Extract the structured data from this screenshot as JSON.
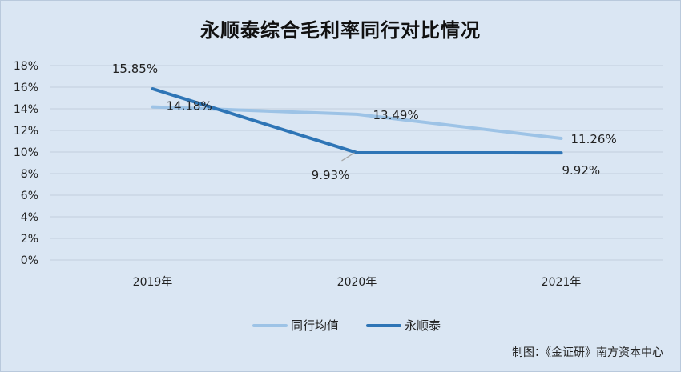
{
  "title": "永顺泰综合毛利率同行对比情况",
  "source": "制图：《金证研》南方资本中心",
  "chart_data": {
    "type": "line",
    "title": "永顺泰综合毛利率同行对比情况",
    "categories": [
      "2019年",
      "2020年",
      "2021年"
    ],
    "ylim": [
      0,
      18
    ],
    "yticks": [
      "0%",
      "2%",
      "4%",
      "6%",
      "8%",
      "10%",
      "12%",
      "14%",
      "16%",
      "18%"
    ],
    "grid": true,
    "legend_position": "bottom",
    "series": [
      {
        "name": "同行均值",
        "values": [
          14.18,
          13.49,
          11.26
        ],
        "labels": [
          "14.18%",
          "13.49%",
          "11.26%"
        ],
        "color": "#9dc3e6"
      },
      {
        "name": "永顺泰",
        "values": [
          15.85,
          9.93,
          9.92
        ],
        "labels": [
          "15.85%",
          "9.93%",
          "9.92%"
        ],
        "color": "#2e75b6"
      }
    ]
  }
}
